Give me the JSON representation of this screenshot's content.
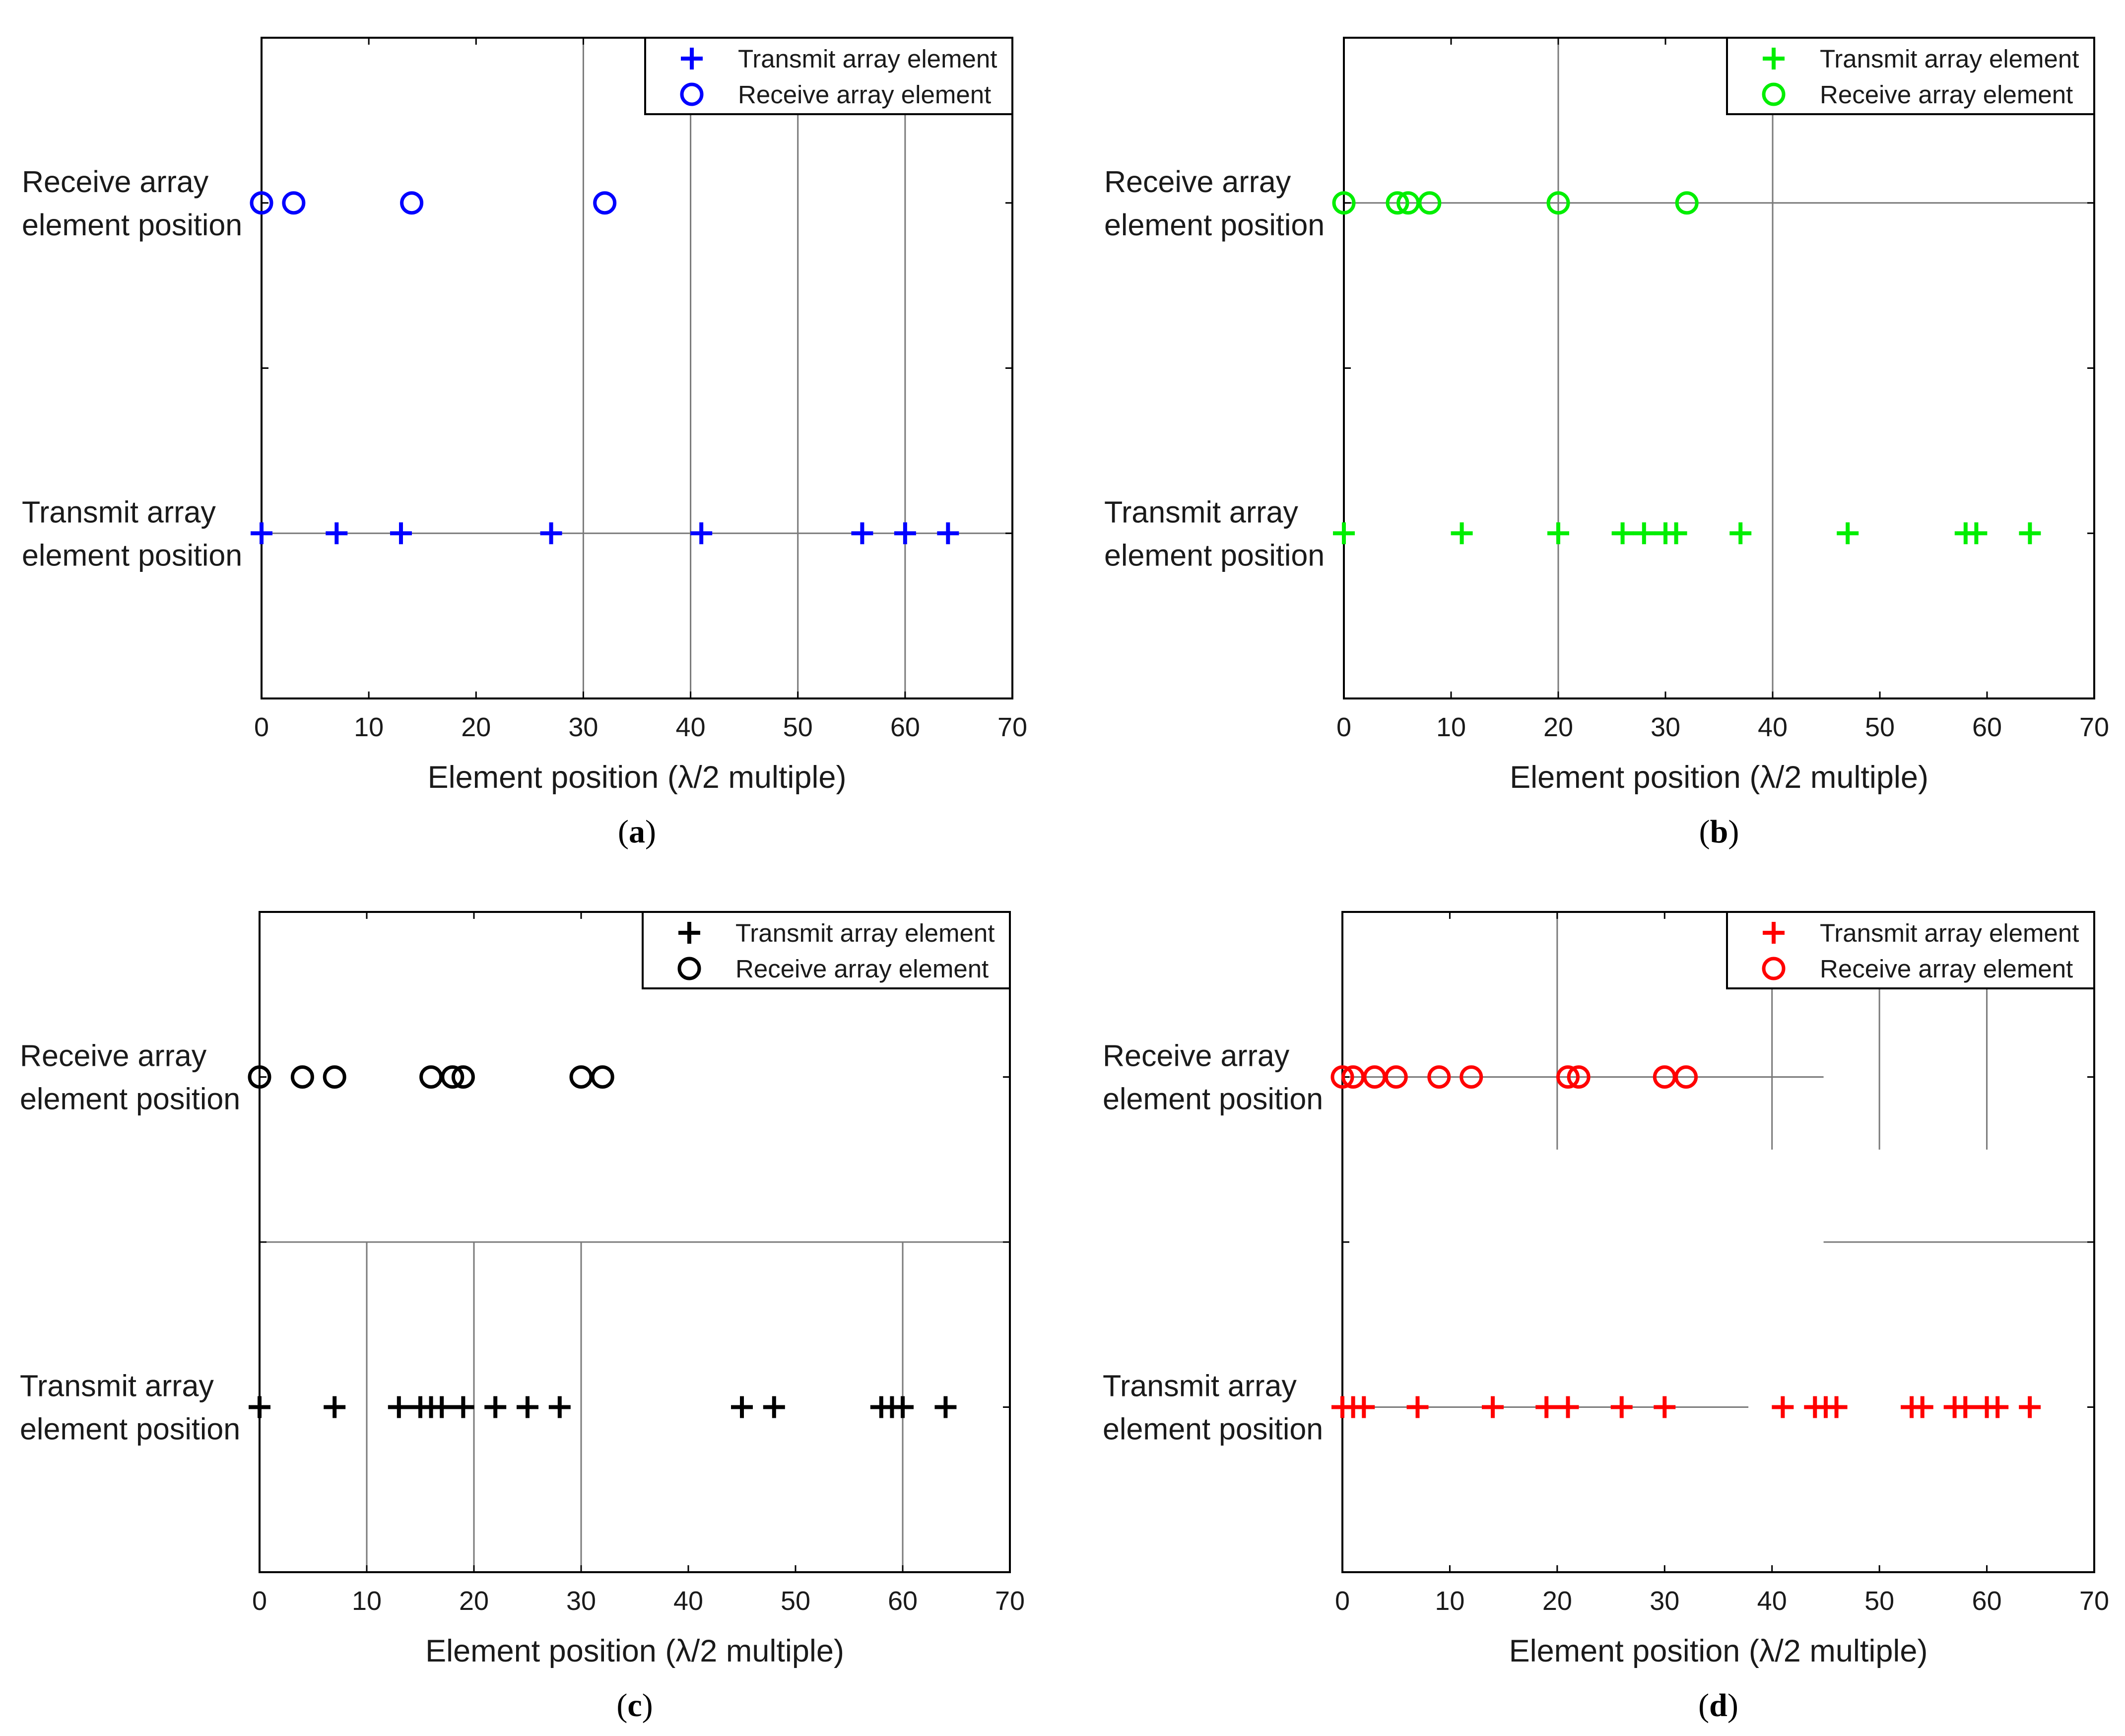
{
  "chart_data": [
    {
      "type": "scatter",
      "panel_label": "a",
      "color": "#0000ff",
      "xlabel": "Element position (λ/2 multiple)",
      "xlim": [
        0,
        70
      ],
      "x_ticks": [
        "0",
        "10",
        "20",
        "30",
        "40",
        "50",
        "60",
        "70"
      ],
      "row_labels": {
        "receive": [
          "Receive array",
          "element position"
        ],
        "transmit": [
          "Transmit array",
          "element position"
        ]
      },
      "series": [
        {
          "name": "Transmit array element",
          "marker": "plus",
          "values": [
            0,
            7,
            13,
            27,
            41,
            56,
            60,
            64
          ]
        },
        {
          "name": "Receive array element",
          "marker": "circle",
          "values": [
            0,
            3,
            14,
            32
          ]
        }
      ],
      "legend": [
        "Transmit array element",
        "Receive array element"
      ],
      "legend_position": "top-right"
    },
    {
      "type": "scatter",
      "panel_label": "b",
      "color": "#00ee00",
      "xlabel": "Element position (λ/2 multiple)",
      "xlim": [
        0,
        70
      ],
      "x_ticks": [
        "0",
        "10",
        "20",
        "30",
        "40",
        "50",
        "60",
        "70"
      ],
      "row_labels": {
        "receive": [
          "Receive array",
          "element position"
        ],
        "transmit": [
          "Transmit array",
          "element position"
        ]
      },
      "series": [
        {
          "name": "Transmit array element",
          "marker": "plus",
          "values": [
            0,
            11,
            20,
            26,
            28,
            30,
            31,
            37,
            47,
            58,
            59,
            64
          ]
        },
        {
          "name": "Receive array element",
          "marker": "circle",
          "values": [
            0,
            5,
            6,
            8,
            20,
            32
          ]
        }
      ],
      "legend": [
        "Transmit array element",
        "Receive array element"
      ],
      "legend_position": "top-right"
    },
    {
      "type": "scatter",
      "panel_label": "c",
      "color": "#000000",
      "xlabel": "Element position (λ/2 multiple)",
      "xlim": [
        0,
        70
      ],
      "x_ticks": [
        "0",
        "10",
        "20",
        "30",
        "40",
        "50",
        "60",
        "70"
      ],
      "row_labels": {
        "receive": [
          "Receive array",
          "element position"
        ],
        "transmit": [
          "Transmit array",
          "element position"
        ]
      },
      "series": [
        {
          "name": "Transmit array element",
          "marker": "plus",
          "values": [
            0,
            7,
            13,
            15,
            16,
            17,
            19,
            22,
            25,
            28,
            45,
            48,
            58,
            59,
            60,
            64
          ]
        },
        {
          "name": "Receive array element",
          "marker": "circle",
          "values": [
            0,
            4,
            7,
            16,
            18,
            19,
            30,
            32
          ]
        }
      ],
      "legend": [
        "Transmit array element",
        "Receive array element"
      ],
      "legend_position": "top-right"
    },
    {
      "type": "scatter",
      "panel_label": "d",
      "color": "#ff0000",
      "xlabel": "Element position (λ/2 multiple)",
      "xlim": [
        0,
        70
      ],
      "x_ticks": [
        "0",
        "10",
        "20",
        "30",
        "40",
        "50",
        "60",
        "70"
      ],
      "row_labels": {
        "receive": [
          "Receive array",
          "element position"
        ],
        "transmit": [
          "Transmit array",
          "element position"
        ]
      },
      "series": [
        {
          "name": "Transmit array element",
          "marker": "plus",
          "values": [
            0,
            1,
            2,
            7,
            14,
            19,
            21,
            26,
            30,
            41,
            44,
            45,
            46,
            53,
            54,
            57,
            58,
            60,
            61,
            64
          ]
        },
        {
          "name": "Receive array element",
          "marker": "circle",
          "values": [
            0,
            1,
            3,
            5,
            9,
            12,
            21,
            22,
            30,
            32
          ]
        }
      ],
      "legend": [
        "Transmit array element",
        "Receive array element"
      ],
      "legend_position": "top-right"
    }
  ]
}
